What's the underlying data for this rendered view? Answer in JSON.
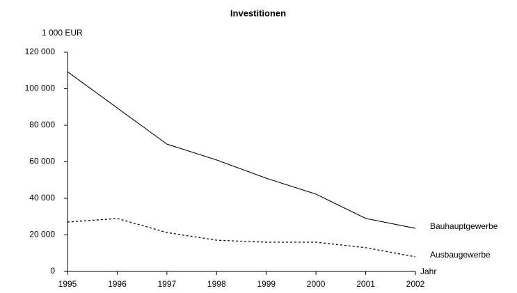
{
  "chart_data": {
    "type": "line",
    "title": "Investitionen",
    "y_label": "1 000 EUR",
    "x_label": "Jahr",
    "x": [
      1995,
      1996,
      1997,
      1998,
      1999,
      2000,
      2001,
      2002
    ],
    "xlim": [
      1995,
      2002
    ],
    "xticks": [
      1995,
      1996,
      1997,
      1998,
      1999,
      2000,
      2001,
      2002
    ],
    "ylim": [
      0,
      120000
    ],
    "yticks": [
      0,
      {
        "value": 20000,
        "label": "20 000"
      },
      {
        "value": 40000,
        "label": "40 000"
      },
      {
        "value": 60000,
        "label": "60 000"
      },
      {
        "value": 80000,
        "label": "80 000"
      },
      {
        "value": 100000,
        "label": "100 000"
      },
      {
        "value": 120000,
        "label": "120 000"
      }
    ],
    "grid": false,
    "series": [
      {
        "name": "Bauhauptgewerbe",
        "color": "#000000",
        "line_style": "solid",
        "values": [
          109300,
          89500,
          69700,
          61000,
          51000,
          42300,
          29000,
          23600
        ]
      },
      {
        "name": "Ausbaugewerbe",
        "color": "#000000",
        "line_style": "dotted",
        "values": [
          27000,
          29000,
          21300,
          17100,
          16000,
          16000,
          13000,
          8000
        ]
      }
    ]
  }
}
